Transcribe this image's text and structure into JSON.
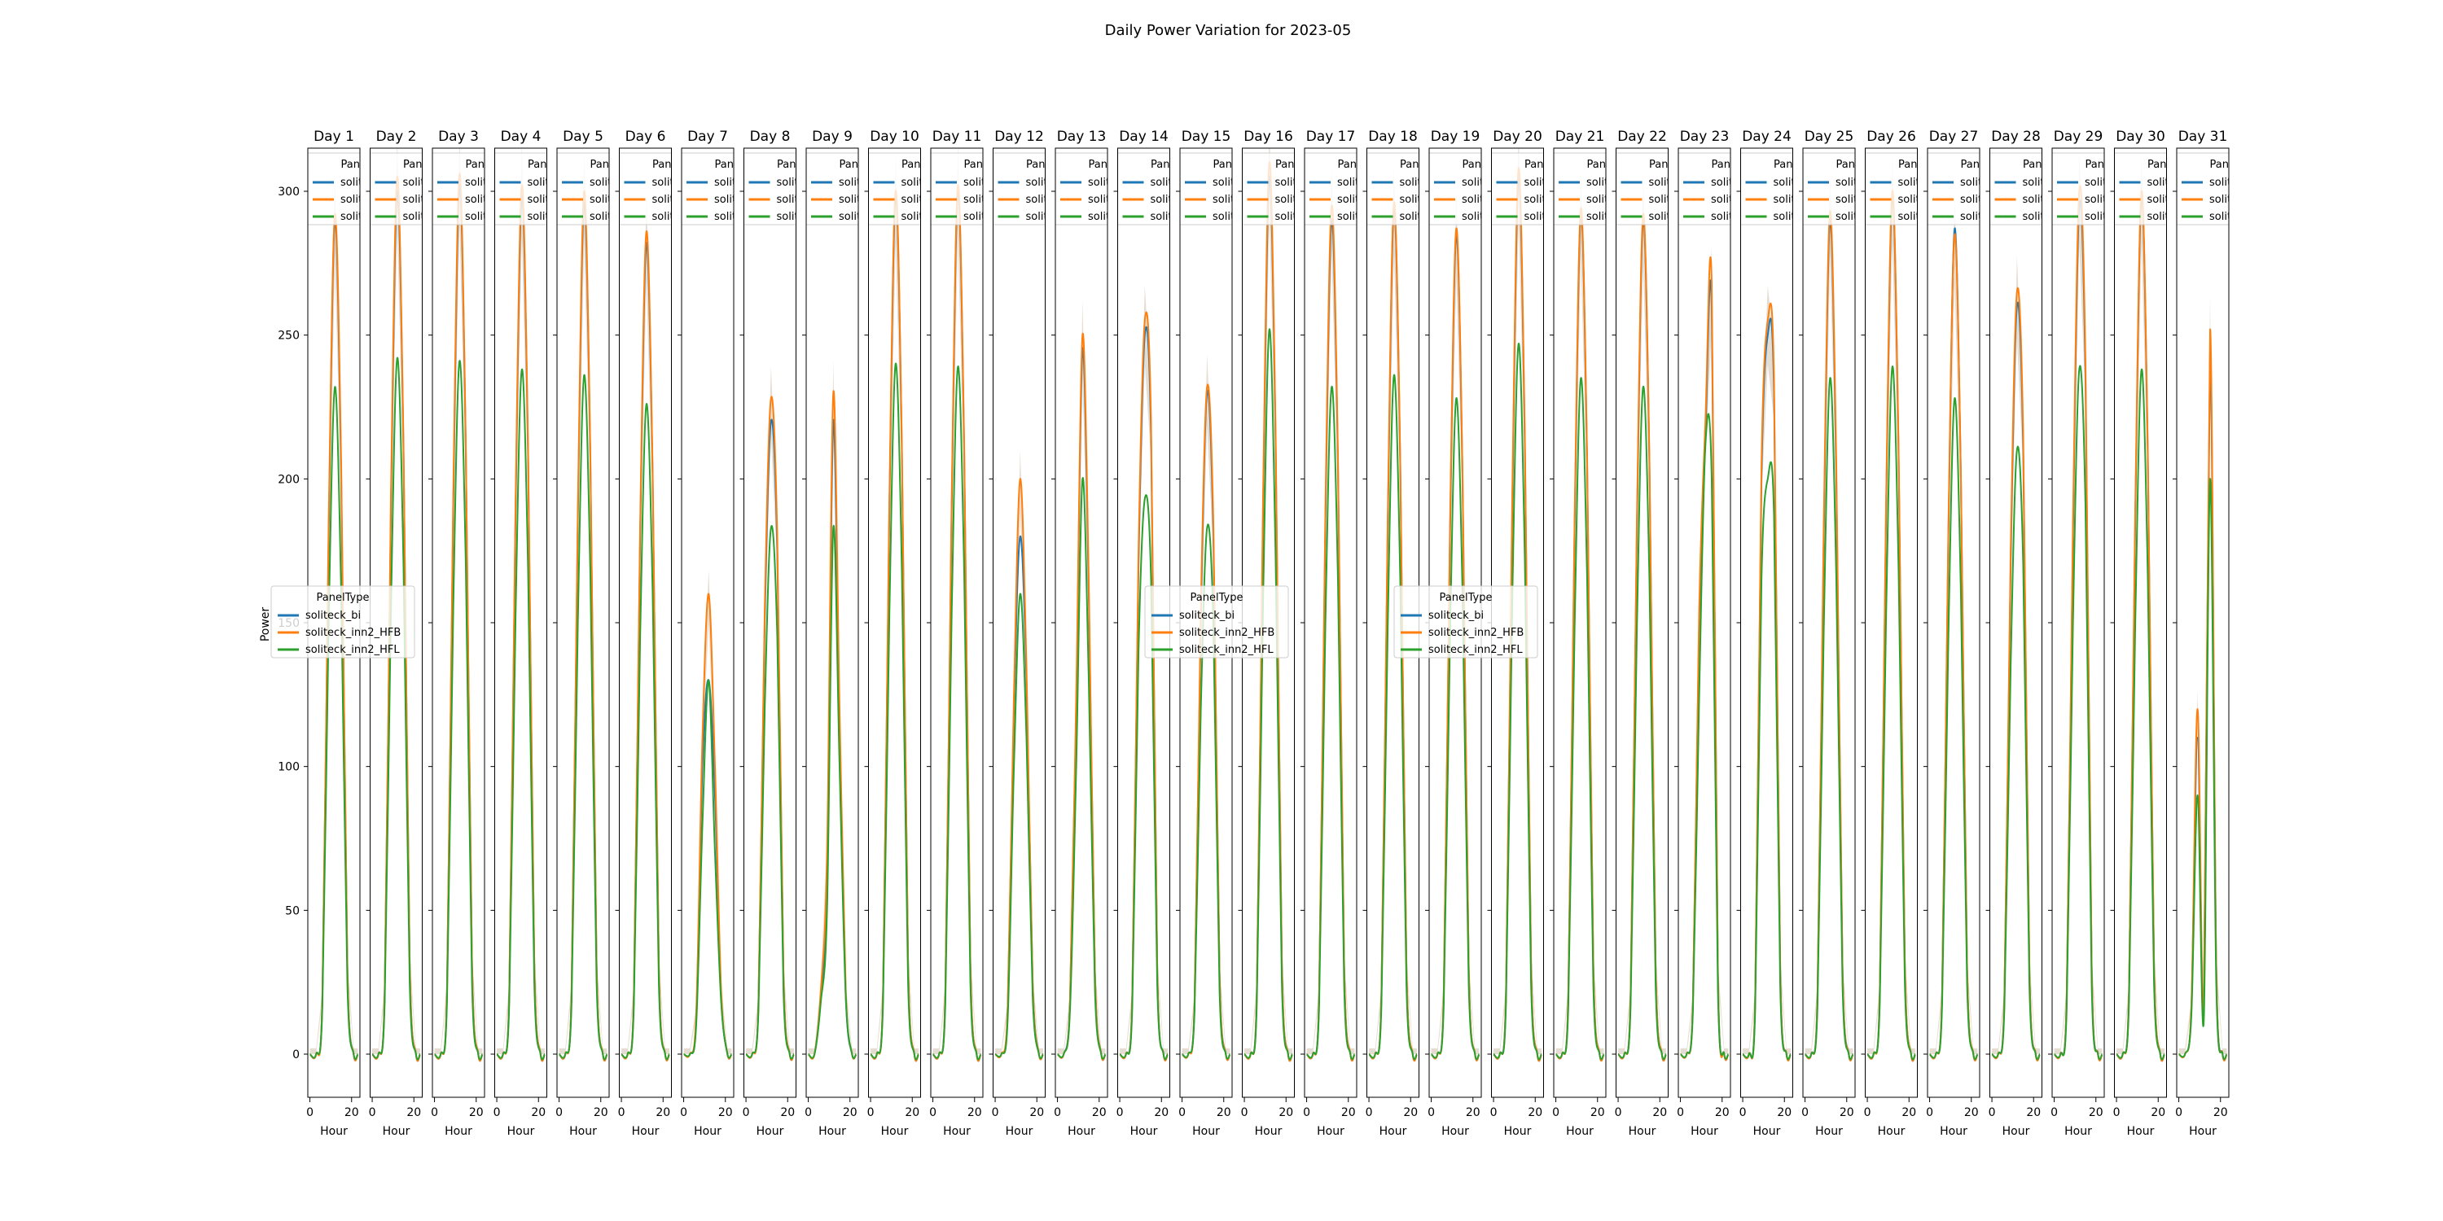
{
  "figure": {
    "title": "Daily Power Variation for 2023-05"
  },
  "colors": {
    "solitecK_bi": "#1f77b4",
    "soliteck_inn2_HFB": "#ff7f0e",
    "soliteck_inn2_HFL": "#2ca02c",
    "band": "#c8b39b"
  },
  "chart_data": {
    "type": "line",
    "title": "Daily Power Variation for 2023-05",
    "ylabel": "Power",
    "xlabel": "Hour",
    "xlim": [
      -1,
      24
    ],
    "ylim": [
      -15,
      315
    ],
    "x_ticks": [
      0,
      20
    ],
    "y_ticks": [
      0,
      50,
      100,
      150,
      200,
      250,
      300
    ],
    "legend": {
      "title": "PanelType",
      "entries": [
        "soliteck_bi",
        "soliteck_inn2_HFB",
        "soliteck_inn2_HFL"
      ]
    },
    "series_names": [
      "soliteck_bi",
      "soliteck_inn2_HFB",
      "soliteck_inn2_HFL"
    ],
    "hours": [
      0,
      3,
      6,
      9,
      12,
      15,
      18,
      21,
      23
    ],
    "days": [
      {
        "title": "Day 1",
        "bi": [
          0,
          0,
          20,
          180,
          290,
          200,
          30,
          0,
          0
        ],
        "hfb": [
          0,
          0,
          20,
          185,
          292,
          205,
          30,
          0,
          0
        ],
        "hfl": [
          0,
          0,
          17,
          150,
          232,
          160,
          24,
          0,
          0
        ]
      },
      {
        "title": "Day 2",
        "bi": [
          0,
          0,
          22,
          190,
          300,
          210,
          32,
          0,
          0
        ],
        "hfb": [
          0,
          0,
          22,
          195,
          305,
          212,
          32,
          0,
          0
        ],
        "hfl": [
          0,
          0,
          18,
          155,
          242,
          170,
          25,
          0,
          0
        ]
      },
      {
        "title": "Day 3",
        "bi": [
          0,
          0,
          22,
          190,
          302,
          210,
          32,
          0,
          0
        ],
        "hfb": [
          0,
          0,
          22,
          195,
          306,
          212,
          32,
          0,
          0
        ],
        "hfl": [
          0,
          0,
          18,
          155,
          241,
          170,
          25,
          0,
          0
        ]
      },
      {
        "title": "Day 4",
        "bi": [
          0,
          0,
          22,
          188,
          298,
          208,
          32,
          0,
          0
        ],
        "hfb": [
          0,
          0,
          22,
          192,
          302,
          210,
          32,
          0,
          0
        ],
        "hfl": [
          0,
          0,
          18,
          152,
          238,
          168,
          25,
          0,
          0
        ]
      },
      {
        "title": "Day 5",
        "bi": [
          0,
          0,
          22,
          186,
          296,
          206,
          31,
          0,
          0
        ],
        "hfb": [
          0,
          0,
          22,
          190,
          300,
          208,
          31,
          0,
          0
        ],
        "hfl": [
          0,
          0,
          18,
          150,
          236,
          166,
          25,
          0,
          0
        ]
      },
      {
        "title": "Day 6",
        "bi": [
          0,
          0,
          21,
          180,
          282,
          200,
          30,
          0,
          0
        ],
        "hfb": [
          0,
          0,
          21,
          184,
          286,
          202,
          30,
          0,
          0
        ],
        "hfl": [
          0,
          0,
          17,
          145,
          226,
          160,
          24,
          0,
          0
        ]
      },
      {
        "title": "Day 7",
        "bi": [
          0,
          0,
          12,
          100,
          130,
          90,
          20,
          0,
          0
        ],
        "hfb": [
          0,
          0,
          14,
          110,
          160,
          100,
          22,
          0,
          0
        ],
        "hfl": [
          0,
          0,
          10,
          80,
          130,
          70,
          18,
          0,
          0
        ]
      },
      {
        "title": "Day 8",
        "bi": [
          0,
          0,
          18,
          150,
          220,
          175,
          28,
          0,
          0
        ],
        "hfb": [
          0,
          0,
          18,
          155,
          228,
          180,
          28,
          0,
          0
        ],
        "hfl": [
          0,
          0,
          15,
          120,
          183,
          145,
          22,
          0,
          0
        ]
      },
      {
        "title": "Day 9",
        "bi": [
          0,
          0,
          20,
          60,
          220,
          110,
          20,
          0,
          0
        ],
        "hfb": [
          0,
          0,
          22,
          70,
          230,
          120,
          22,
          0,
          0
        ],
        "hfl": [
          0,
          0,
          18,
          50,
          183,
          100,
          20,
          0,
          0
        ]
      },
      {
        "title": "Day 10",
        "bi": [
          0,
          0,
          22,
          188,
          298,
          210,
          32,
          0,
          0
        ],
        "hfb": [
          0,
          0,
          22,
          192,
          300,
          212,
          32,
          0,
          0
        ],
        "hfl": [
          0,
          0,
          18,
          152,
          240,
          168,
          25,
          0,
          0
        ]
      },
      {
        "title": "Day 11",
        "bi": [
          0,
          0,
          22,
          188,
          300,
          210,
          32,
          0,
          0
        ],
        "hfb": [
          0,
          0,
          22,
          192,
          302,
          212,
          32,
          0,
          0
        ],
        "hfl": [
          0,
          0,
          18,
          152,
          239,
          168,
          25,
          0,
          0
        ]
      },
      {
        "title": "Day 12",
        "bi": [
          0,
          0,
          15,
          120,
          180,
          130,
          25,
          0,
          0
        ],
        "hfb": [
          0,
          0,
          16,
          125,
          200,
          135,
          25,
          0,
          0
        ],
        "hfl": [
          0,
          0,
          12,
          100,
          160,
          110,
          20,
          0,
          0
        ]
      },
      {
        "title": "Day 13",
        "bi": [
          0,
          0,
          18,
          120,
          245,
          160,
          28,
          0,
          0
        ],
        "hfb": [
          0,
          0,
          18,
          125,
          250,
          165,
          28,
          0,
          0
        ],
        "hfl": [
          0,
          0,
          15,
          100,
          200,
          130,
          22,
          0,
          0
        ]
      },
      {
        "title": "Day 14",
        "bi": [
          0,
          0,
          20,
          170,
          250,
          215,
          30,
          0,
          0
        ],
        "hfb": [
          0,
          0,
          20,
          175,
          255,
          220,
          30,
          0,
          0
        ],
        "hfl": [
          0,
          0,
          16,
          140,
          193,
          165,
          24,
          0,
          0
        ]
      },
      {
        "title": "Day 15",
        "bi": [
          0,
          0,
          18,
          150,
          230,
          180,
          28,
          0,
          0
        ],
        "hfb": [
          0,
          0,
          18,
          155,
          232,
          185,
          28,
          0,
          0
        ],
        "hfl": [
          0,
          0,
          15,
          120,
          183,
          150,
          22,
          0,
          0
        ]
      },
      {
        "title": "Day 16",
        "bi": [
          0,
          0,
          22,
          190,
          305,
          212,
          32,
          0,
          0
        ],
        "hfb": [
          0,
          0,
          22,
          195,
          310,
          215,
          32,
          0,
          0
        ],
        "hfl": [
          0,
          0,
          18,
          158,
          252,
          172,
          25,
          0,
          0
        ]
      },
      {
        "title": "Day 17",
        "bi": [
          0,
          0,
          21,
          185,
          290,
          205,
          31,
          0,
          0
        ],
        "hfb": [
          0,
          0,
          21,
          190,
          295,
          208,
          31,
          0,
          0
        ],
        "hfl": [
          0,
          0,
          17,
          150,
          232,
          165,
          24,
          0,
          0
        ]
      },
      {
        "title": "Day 18",
        "bi": [
          0,
          0,
          21,
          182,
          294,
          205,
          31,
          0,
          0
        ],
        "hfb": [
          0,
          0,
          21,
          186,
          296,
          207,
          31,
          0,
          0
        ],
        "hfl": [
          0,
          0,
          17,
          148,
          236,
          165,
          24,
          0,
          0
        ]
      },
      {
        "title": "Day 19",
        "bi": [
          0,
          0,
          21,
          180,
          285,
          200,
          30,
          0,
          0
        ],
        "hfb": [
          0,
          0,
          21,
          184,
          287,
          202,
          30,
          0,
          0
        ],
        "hfl": [
          0,
          0,
          17,
          145,
          228,
          160,
          24,
          0,
          0
        ]
      },
      {
        "title": "Day 20",
        "bi": [
          0,
          0,
          22,
          190,
          305,
          212,
          32,
          0,
          0
        ],
        "hfb": [
          0,
          0,
          22,
          195,
          308,
          215,
          32,
          0,
          0
        ],
        "hfl": [
          0,
          0,
          18,
          158,
          247,
          172,
          25,
          0,
          0
        ]
      },
      {
        "title": "Day 21",
        "bi": [
          0,
          0,
          21,
          182,
          292,
          205,
          31,
          0,
          0
        ],
        "hfb": [
          0,
          0,
          21,
          186,
          294,
          207,
          31,
          0,
          0
        ],
        "hfl": [
          0,
          0,
          17,
          148,
          235,
          165,
          24,
          0,
          0
        ]
      },
      {
        "title": "Day 22",
        "bi": [
          0,
          0,
          21,
          182,
          290,
          205,
          31,
          0,
          0
        ],
        "hfb": [
          0,
          0,
          21,
          186,
          292,
          207,
          31,
          0,
          0
        ],
        "hfl": [
          0,
          0,
          17,
          148,
          232,
          165,
          24,
          0,
          0
        ]
      },
      {
        "title": "Day 23",
        "bi": [
          0,
          0,
          18,
          150,
          215,
          260,
          28,
          0,
          0
        ],
        "hfb": [
          0,
          0,
          18,
          155,
          220,
          268,
          28,
          0,
          0
        ],
        "hfl": [
          0,
          0,
          15,
          125,
          212,
          200,
          22,
          0,
          0
        ]
      },
      {
        "title": "Day 24",
        "bi": [
          0,
          0,
          20,
          200,
          250,
          230,
          30,
          0,
          0
        ],
        "hfb": [
          0,
          0,
          20,
          205,
          255,
          235,
          30,
          0,
          0
        ],
        "hfl": [
          0,
          0,
          16,
          165,
          200,
          187,
          24,
          0,
          0
        ]
      },
      {
        "title": "Day 25",
        "bi": [
          0,
          0,
          21,
          180,
          290,
          200,
          30,
          0,
          0
        ],
        "hfb": [
          0,
          0,
          21,
          185,
          293,
          205,
          30,
          0,
          0
        ],
        "hfl": [
          0,
          0,
          17,
          148,
          235,
          165,
          24,
          0,
          0
        ]
      },
      {
        "title": "Day 26",
        "bi": [
          0,
          0,
          22,
          188,
          298,
          208,
          32,
          0,
          0
        ],
        "hfb": [
          0,
          0,
          22,
          192,
          300,
          210,
          32,
          0,
          0
        ],
        "hfl": [
          0,
          0,
          18,
          152,
          239,
          168,
          25,
          0,
          0
        ]
      },
      {
        "title": "Day 27",
        "bi": [
          0,
          0,
          21,
          180,
          287,
          200,
          30,
          0,
          0
        ],
        "hfb": [
          0,
          0,
          21,
          183,
          285,
          200,
          30,
          0,
          0
        ],
        "hfl": [
          0,
          0,
          17,
          145,
          228,
          160,
          24,
          0,
          0
        ]
      },
      {
        "title": "Day 28",
        "bi": [
          0,
          0,
          20,
          170,
          260,
          210,
          30,
          0,
          0
        ],
        "hfb": [
          0,
          0,
          20,
          175,
          265,
          215,
          30,
          0,
          0
        ],
        "hfl": [
          0,
          0,
          16,
          135,
          210,
          170,
          24,
          0,
          0
        ]
      },
      {
        "title": "Day 29",
        "bi": [
          0,
          0,
          20,
          180,
          295,
          235,
          30,
          0,
          0
        ],
        "hfb": [
          0,
          0,
          20,
          185,
          300,
          240,
          30,
          0,
          0
        ],
        "hfl": [
          0,
          0,
          16,
          150,
          238,
          190,
          24,
          0,
          0
        ]
      },
      {
        "title": "Day 30",
        "bi": [
          0,
          0,
          22,
          186,
          298,
          208,
          32,
          0,
          0
        ],
        "hfb": [
          0,
          0,
          22,
          190,
          300,
          210,
          32,
          0,
          0
        ],
        "hfl": [
          0,
          0,
          18,
          150,
          238,
          166,
          25,
          0,
          0
        ]
      },
      {
        "title": "Day 31",
        "bi": [
          0,
          0,
          15,
          110,
          15,
          245,
          30,
          0,
          0
        ],
        "hfb": [
          0,
          0,
          16,
          120,
          15,
          252,
          30,
          0,
          0
        ],
        "hfl": [
          0,
          0,
          13,
          90,
          12,
          200,
          24,
          0,
          0
        ]
      }
    ]
  }
}
